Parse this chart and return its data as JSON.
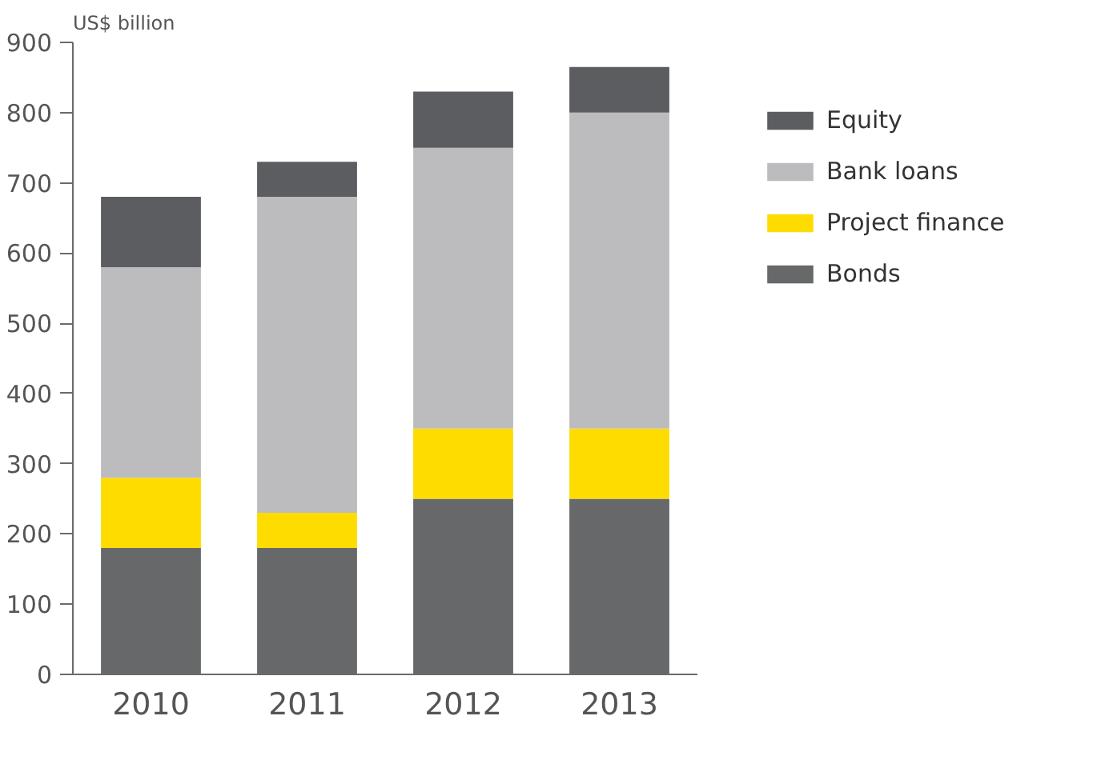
{
  "chart_data": {
    "type": "bar",
    "stacked": true,
    "ylabel": "US$ billion",
    "categories": [
      "2010",
      "2011",
      "2012",
      "2013"
    ],
    "series": [
      {
        "name": "Bonds",
        "color": "#67686a",
        "values": [
          180,
          180,
          250,
          250
        ]
      },
      {
        "name": "Project finance",
        "color": "#ffdc00",
        "values": [
          100,
          50,
          100,
          100
        ]
      },
      {
        "name": "Bank loans",
        "color": "#bcbcbf",
        "values": [
          300,
          450,
          400,
          450
        ]
      },
      {
        "name": "Equity",
        "color": "#5c5d60",
        "values": [
          100,
          50,
          80,
          65
        ]
      }
    ],
    "ylim": [
      0,
      900
    ],
    "yticks": [
      0,
      100,
      200,
      300,
      400,
      500,
      600,
      700,
      800,
      900
    ],
    "grid": false,
    "legend": "right"
  }
}
